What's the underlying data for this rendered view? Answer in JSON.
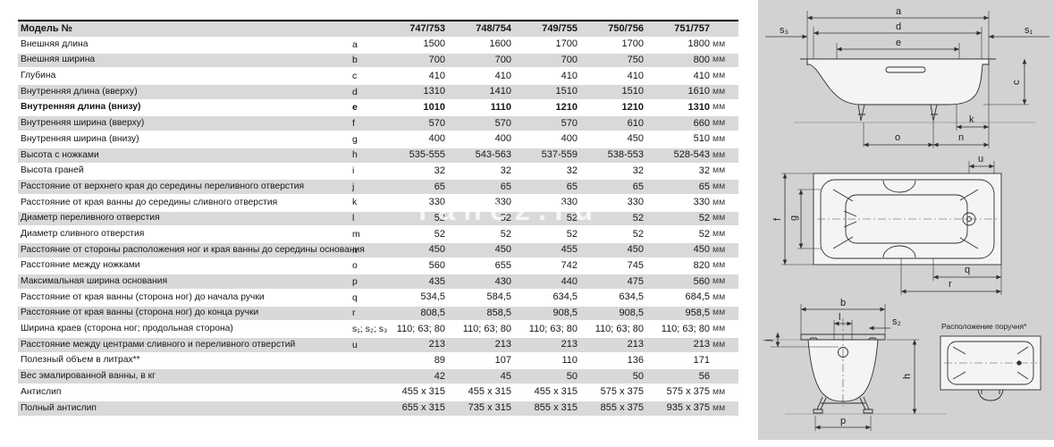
{
  "watermark": "ranez.ru",
  "colors": {
    "stripe": "#d9d9d9",
    "panel": "#d2d2d2",
    "header_border": "#000000",
    "text": "#161616"
  },
  "table": {
    "header": {
      "label": "Модель №",
      "models": [
        "747/753",
        "748/754",
        "749/755",
        "750/756",
        "751/757"
      ]
    },
    "rows": [
      {
        "label": "Внешняя длина",
        "letter": "a",
        "values": [
          "1500",
          "1600",
          "1700",
          "1700",
          "1800"
        ],
        "unit": "мм"
      },
      {
        "label": "Внешняя ширина",
        "letter": "b",
        "values": [
          "700",
          "700",
          "700",
          "750",
          "800"
        ],
        "unit": "мм"
      },
      {
        "label": "Глубина",
        "letter": "c",
        "values": [
          "410",
          "410",
          "410",
          "410",
          "410"
        ],
        "unit": "мм"
      },
      {
        "label": "Внутренняя длина (вверху)",
        "letter": "d",
        "values": [
          "1310",
          "1410",
          "1510",
          "1510",
          "1610"
        ],
        "unit": "мм"
      },
      {
        "label": "Внутренняя длина (внизу)",
        "letter": "e",
        "values": [
          "1010",
          "1110",
          "1210",
          "1210",
          "1310"
        ],
        "unit": "мм",
        "bold": true
      },
      {
        "label": "Внутренняя ширина (вверху)",
        "letter": "f",
        "values": [
          "570",
          "570",
          "570",
          "610",
          "660"
        ],
        "unit": "мм"
      },
      {
        "label": "Внутренняя ширина (внизу)",
        "letter": "g",
        "values": [
          "400",
          "400",
          "400",
          "450",
          "510"
        ],
        "unit": "мм"
      },
      {
        "label": "Высота с ножками",
        "letter": "h",
        "values": [
          "535-555",
          "543-563",
          "537-559",
          "538-553",
          "528-543"
        ],
        "unit": "мм"
      },
      {
        "label": "Высота граней",
        "letter": "i",
        "values": [
          "32",
          "32",
          "32",
          "32",
          "32"
        ],
        "unit": "мм"
      },
      {
        "label": "Расстояние от верхнего края до середины переливного отверстия",
        "letter": "j",
        "values": [
          "65",
          "65",
          "65",
          "65",
          "65"
        ],
        "unit": "мм"
      },
      {
        "label": "Расстояние от края ванны до середины сливного отверстия",
        "letter": "k",
        "values": [
          "330",
          "330",
          "330",
          "330",
          "330"
        ],
        "unit": "мм"
      },
      {
        "label": "Диаметр переливного отверстия",
        "letter": "l",
        "values": [
          "52",
          "52",
          "52",
          "52",
          "52"
        ],
        "unit": "мм"
      },
      {
        "label": "Диаметр сливного отверстия",
        "letter": "m",
        "values": [
          "52",
          "52",
          "52",
          "52",
          "52"
        ],
        "unit": "мм"
      },
      {
        "label": "Расстояние от стороны расположения ног и края ванны до середины основания",
        "letter": "n",
        "values": [
          "450",
          "450",
          "455",
          "450",
          "450"
        ],
        "unit": "мм"
      },
      {
        "label": "Расстояние между ножками",
        "letter": "o",
        "values": [
          "560",
          "655",
          "742",
          "745",
          "820"
        ],
        "unit": "мм"
      },
      {
        "label": "Максимальная ширина основания",
        "letter": "p",
        "values": [
          "435",
          "430",
          "440",
          "475",
          "560"
        ],
        "unit": "мм"
      },
      {
        "label": "Расстояние от края ванны (сторона ног) до начала ручки",
        "letter": "q",
        "values": [
          "534,5",
          "584,5",
          "634,5",
          "634,5",
          "684,5"
        ],
        "unit": "мм"
      },
      {
        "label": "Расстояние от края ванны (сторона ног) до конца ручки",
        "letter": "r",
        "values": [
          "808,5",
          "858,5",
          "908,5",
          "908,5",
          "958,5"
        ],
        "unit": "мм"
      },
      {
        "label": "Ширина краев (сторона ног; продольная сторона)",
        "letter": "s₁; s₂; s₃",
        "values": [
          "110; 63; 80",
          "110; 63; 80",
          "110; 63; 80",
          "110; 63; 80",
          "110; 63; 80"
        ],
        "unit": "мм"
      },
      {
        "label": "Расстояние между центрами сливного и переливного отверстий",
        "letter": "u",
        "values": [
          "213",
          "213",
          "213",
          "213",
          "213"
        ],
        "unit": "мм"
      },
      {
        "label": "Полезный объем в литрах**",
        "letter": "",
        "values": [
          "89",
          "107",
          "110",
          "136",
          "171"
        ],
        "unit": ""
      },
      {
        "label": "Вес эмалированной ванны, в кг",
        "letter": "",
        "values": [
          "42",
          "45",
          "50",
          "50",
          "56"
        ],
        "unit": ""
      },
      {
        "label": "Антислип",
        "letter": "",
        "values": [
          "455 x 315",
          "455 x 315",
          "455 x 315",
          "575 x 375",
          "575 x 375"
        ],
        "unit": "мм"
      },
      {
        "label": "Полный антислип",
        "letter": "",
        "values": [
          "655 x 315",
          "735 x 315",
          "855 x 315",
          "855 x 375",
          "935 x 375"
        ],
        "unit": "мм"
      }
    ]
  },
  "diagrams": {
    "side": {
      "a": "a",
      "d": "d",
      "e": "e",
      "s3": "s₃",
      "s1": "s₁",
      "c": "c",
      "k": "k",
      "o": "o",
      "n": "n"
    },
    "top": {
      "u": "u",
      "f": "f",
      "g": "g",
      "q": "q",
      "r": "r"
    },
    "end": {
      "b": "b",
      "l": "l",
      "s2": "s₂",
      "j": "j",
      "h": "h",
      "p": "p"
    },
    "handle_title": "Расположение поручня*"
  }
}
